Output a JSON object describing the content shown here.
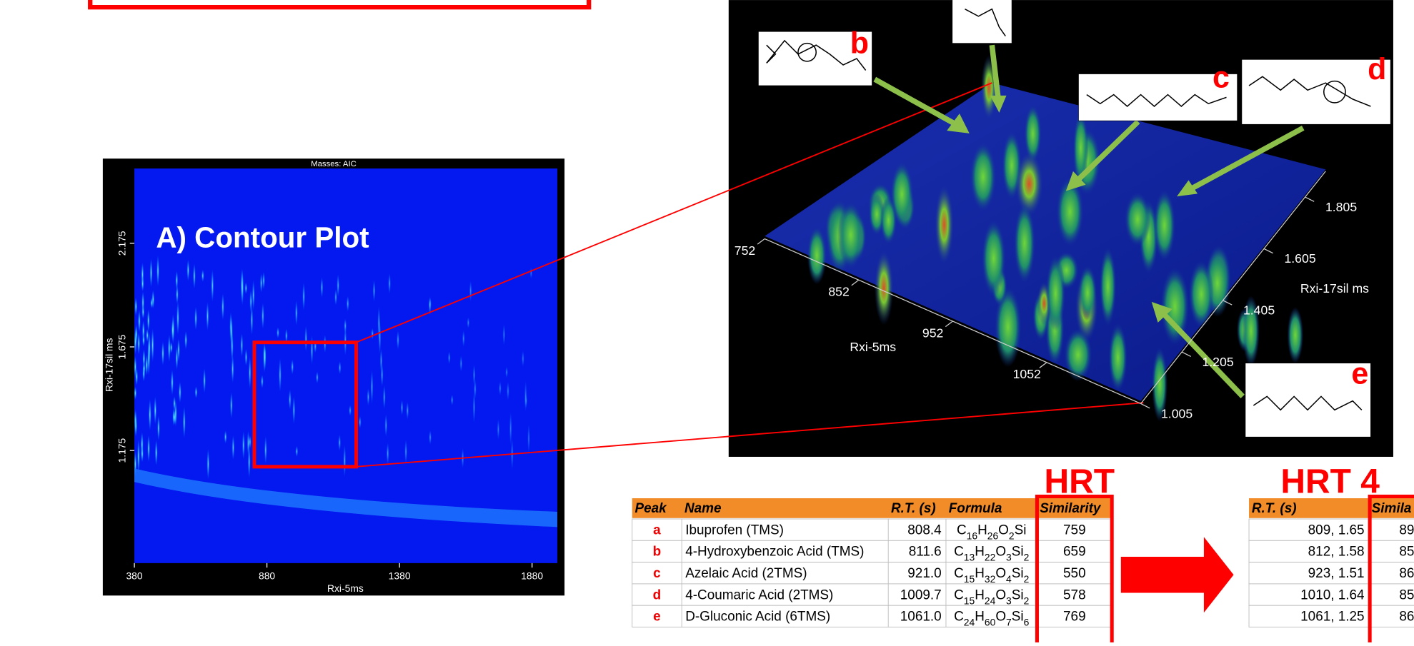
{
  "contour_plot": {
    "title": "A) Contour Plot",
    "masses_label": "Masses: AIC",
    "x_label": "Rxi-5ms",
    "y_label": "Rxi-17sil ms",
    "xticks": [
      380,
      880,
      1380,
      1880
    ],
    "yticks": [
      2.175,
      1.675,
      1.175
    ]
  },
  "surface_plot": {
    "x_label": "Rxi-5ms",
    "y_label": "Rxi-17sil ms",
    "xticks": [
      752,
      852,
      952,
      1052
    ],
    "yticks": [
      1.005,
      1.205,
      1.405,
      1.605,
      1.805
    ],
    "peak_labels": [
      "b",
      "c",
      "d",
      "e"
    ]
  },
  "table": {
    "title": "HRT",
    "columns": [
      "Peak",
      "Name",
      "R.T. (s)",
      "Formula",
      "Similarity"
    ],
    "rows": [
      [
        "a",
        "Ibuprofen (TMS)",
        "808.4",
        "C16H26O2Si",
        759
      ],
      [
        "b",
        "4-Hydroxybenzoic Acid (TMS)",
        "811.6",
        "C13H22O3Si2",
        659
      ],
      [
        "c",
        "Azelaic Acid (2TMS)",
        "921.0",
        "C15H32O4Si2",
        550
      ],
      [
        "d",
        "4-Coumaric Acid (2TMS)",
        "1009.7",
        "C15H24O3Si2",
        578
      ],
      [
        "e",
        "D-Gluconic Acid (6TMS)",
        "1061.0",
        "C24H60O7Si6",
        769
      ]
    ]
  },
  "table_hrt4": {
    "title": "HRT 4",
    "columns": [
      "R.T. (s)",
      "Simila"
    ],
    "rows": [
      [
        "809, 1.65",
        "89"
      ],
      [
        "812, 1.58",
        "85"
      ],
      [
        "923, 1.51",
        "86"
      ],
      [
        "1010, 1.64",
        "85"
      ],
      [
        "1061, 1.25",
        "86"
      ]
    ]
  }
}
